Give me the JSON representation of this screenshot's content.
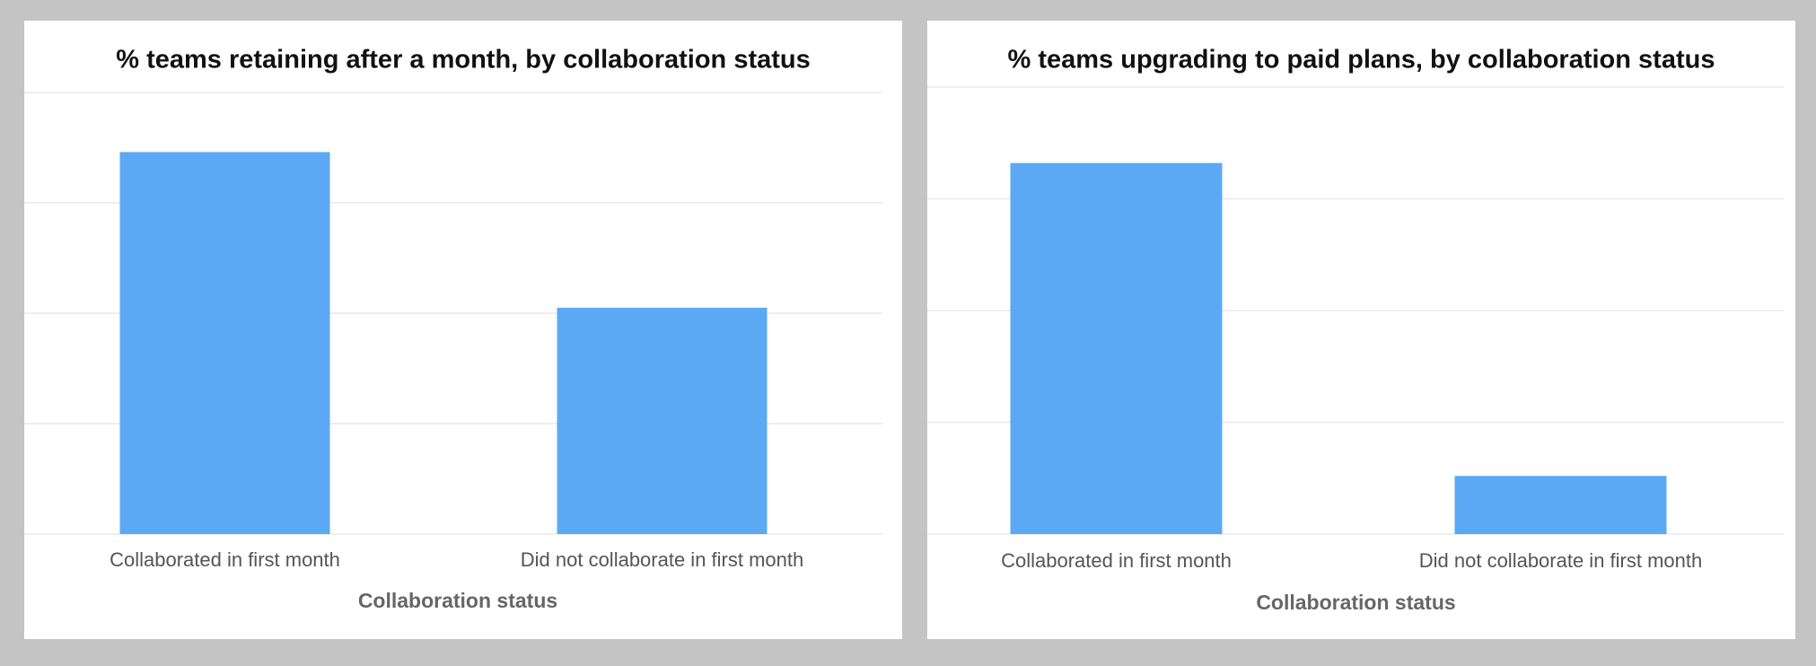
{
  "chart_data": [
    {
      "type": "bar",
      "title": "% teams retaining after a month, by collaboration status",
      "x_label": "Collaboration status",
      "categories": [
        "Collaborated in first month",
        "Did not collaborate in first month"
      ],
      "values": [
        3.46,
        2.05
      ],
      "color": "#5ba9f4",
      "ylim": [
        0,
        4
      ],
      "yticks": [
        0,
        1,
        2,
        3,
        4
      ],
      "grid": true,
      "tick_labels": false
    },
    {
      "type": "bar",
      "title": "% teams upgrading to paid plans, by collaboration status",
      "x_label": "Collaboration status",
      "categories": [
        "Collaborated in first month",
        "Did not collaborate in first month"
      ],
      "values": [
        3.32,
        0.52
      ],
      "color": "#5ba9f4",
      "ylim": [
        0,
        4
      ],
      "yticks": [
        0,
        1,
        2,
        3,
        4
      ],
      "grid": true,
      "tick_labels": false
    }
  ]
}
